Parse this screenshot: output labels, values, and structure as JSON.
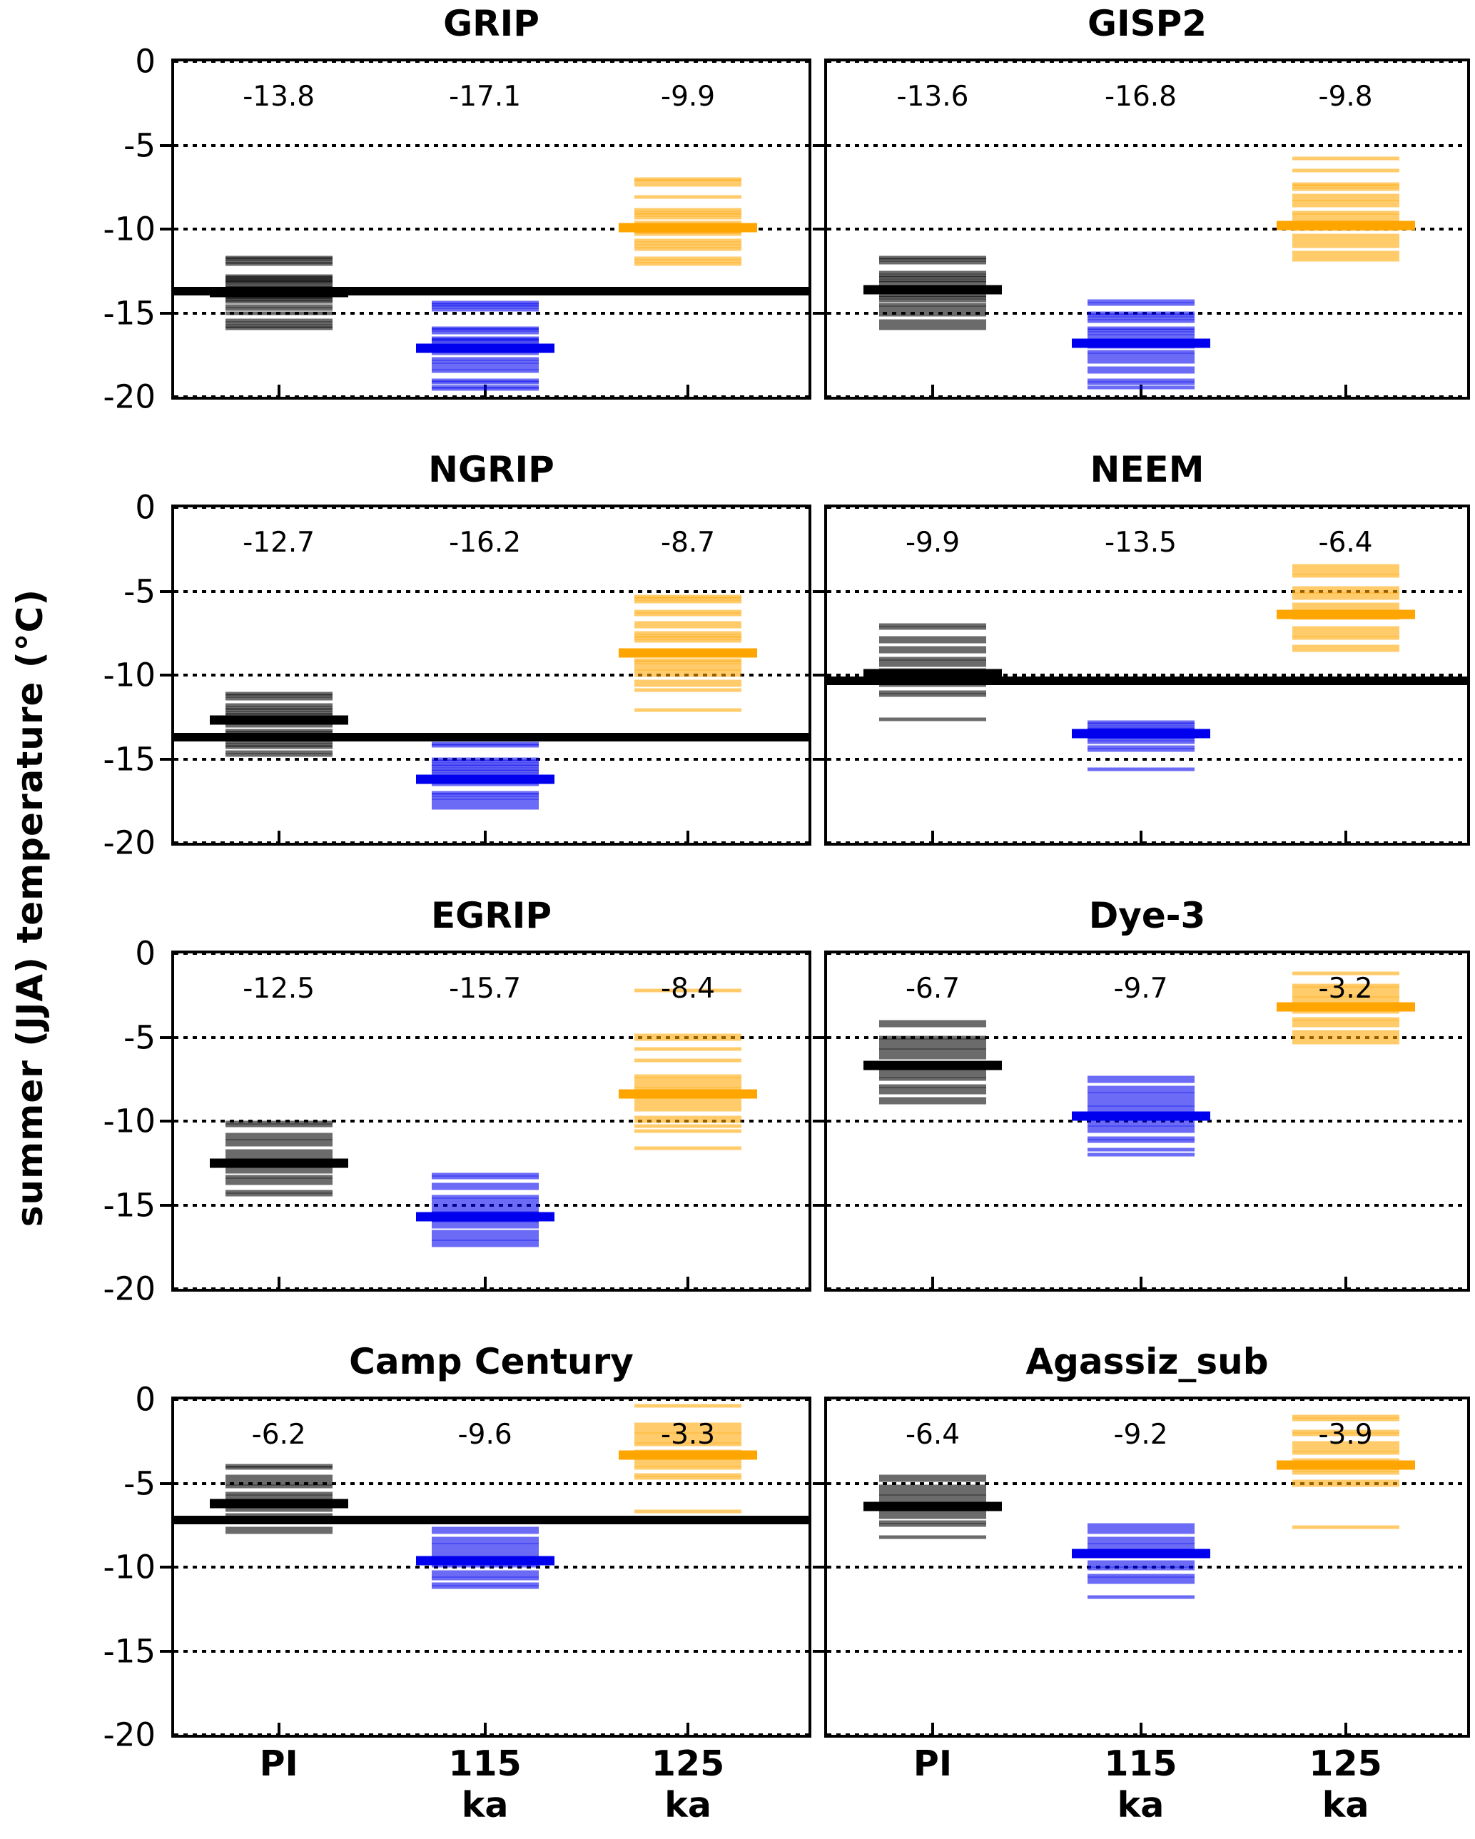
{
  "figure": {
    "ylabel": "summer (JJA) temperature (°C)",
    "ytick_labels": [
      "0",
      "-5",
      "-10",
      "-15",
      "-20"
    ],
    "ytick_values": [
      0,
      -5,
      -10,
      -15,
      -20
    ],
    "xtick_labels": [
      "PI",
      "115\nka",
      "125\nka"
    ],
    "group_x": [
      0.165,
      0.49,
      0.81
    ],
    "colors": {
      "pi": "#000000",
      "t115": "#0000ee",
      "t125": "#ffa500"
    }
  },
  "chart_data": [
    {
      "type": "strip",
      "title": "GRIP",
      "ylim": [
        -20,
        0
      ],
      "gridlines": [
        0,
        -5,
        -10,
        -15,
        -20
      ],
      "reference_line": -13.7,
      "groups": [
        {
          "category": "PI",
          "color_key": "pi",
          "mean": -13.8,
          "mean_label": "-13.8",
          "members": [
            -11.7,
            -11.8,
            -11.95,
            -12.1,
            -12.8,
            -12.9,
            -13.0,
            -13.1,
            -13.2,
            -13.35,
            -13.5,
            -13.9,
            -14.0,
            -14.1,
            -14.2,
            -14.35,
            -14.6,
            -14.75,
            -15.0,
            -15.45,
            -15.6,
            -15.8,
            -15.9
          ]
        },
        {
          "category": "115 ka",
          "color_key": "t115",
          "mean": -17.1,
          "mean_label": "-17.1",
          "members": [
            -14.4,
            -14.5,
            -14.65,
            -14.8,
            -15.9,
            -16.0,
            -16.15,
            -16.5,
            -16.6,
            -16.7,
            -16.85,
            -17.0,
            -17.1,
            -17.25,
            -17.4,
            -17.75,
            -17.9,
            -18.1,
            -18.3,
            -18.45,
            -19.0,
            -19.15,
            -19.4,
            -19.55
          ]
        },
        {
          "category": "125 ka",
          "color_key": "t125",
          "mean": -9.9,
          "mean_label": "-9.9",
          "members": [
            -7.0,
            -7.15,
            -7.35,
            -8.1,
            -8.85,
            -9.0,
            -9.15,
            -9.3,
            -9.6,
            -9.75,
            -9.9,
            -10.0,
            -10.15,
            -10.3,
            -10.7,
            -10.85,
            -11.0,
            -11.2,
            -11.75,
            -11.9,
            -12.1
          ]
        }
      ]
    },
    {
      "type": "strip",
      "title": "GISP2",
      "ylim": [
        -20,
        0
      ],
      "gridlines": [
        0,
        -5,
        -10,
        -15,
        -20
      ],
      "reference_line": null,
      "groups": [
        {
          "category": "PI",
          "color_key": "pi",
          "mean": -13.6,
          "mean_label": "-13.6",
          "members": [
            -11.7,
            -11.85,
            -12.0,
            -12.6,
            -12.75,
            -12.9,
            -13.05,
            -13.2,
            -13.4,
            -13.55,
            -13.8,
            -13.95,
            -14.1,
            -14.25,
            -14.5,
            -14.7,
            -14.9,
            -15.1,
            -15.5,
            -15.7,
            -15.9
          ]
        },
        {
          "category": "115 ka",
          "color_key": "t115",
          "mean": -16.8,
          "mean_label": "-16.8",
          "members": [
            -14.3,
            -14.45,
            -15.0,
            -15.15,
            -15.3,
            -15.5,
            -15.9,
            -16.05,
            -16.2,
            -16.4,
            -16.6,
            -16.8,
            -17.0,
            -17.3,
            -17.5,
            -17.7,
            -17.9,
            -18.3,
            -18.5,
            -19.0,
            -19.2,
            -19.45
          ]
        },
        {
          "category": "125 ka",
          "color_key": "t125",
          "mean": -9.8,
          "mean_label": "-9.8",
          "members": [
            -5.8,
            -6.5,
            -7.3,
            -7.45,
            -7.6,
            -8.0,
            -8.2,
            -8.4,
            -8.6,
            -9.0,
            -9.2,
            -9.4,
            -9.6,
            -9.8,
            -10.0,
            -10.4,
            -10.6,
            -10.8,
            -11.0,
            -11.4,
            -11.6,
            -11.85
          ]
        }
      ]
    },
    {
      "type": "strip",
      "title": "NGRIP",
      "ylim": [
        -20,
        0
      ],
      "gridlines": [
        0,
        -5,
        -10,
        -15,
        -20
      ],
      "reference_line": -13.7,
      "groups": [
        {
          "category": "PI",
          "color_key": "pi",
          "mean": -12.7,
          "mean_label": "-12.7",
          "members": [
            -11.1,
            -11.25,
            -11.4,
            -11.8,
            -11.95,
            -12.1,
            -12.25,
            -12.4,
            -12.55,
            -12.7,
            -12.85,
            -13.0,
            -13.3,
            -13.45,
            -13.6,
            -14.0,
            -14.15,
            -14.3,
            -14.6,
            -14.75
          ]
        },
        {
          "category": "115 ka",
          "color_key": "t115",
          "mean": -16.2,
          "mean_label": "-16.2",
          "members": [
            -14.1,
            -14.2,
            -15.0,
            -15.15,
            -15.3,
            -15.45,
            -15.6,
            -15.75,
            -15.9,
            -16.05,
            -16.2,
            -16.35,
            -16.5,
            -17.0,
            -17.15,
            -17.3,
            -17.5,
            -17.7,
            -17.9
          ]
        },
        {
          "category": "125 ka",
          "color_key": "t125",
          "mean": -8.7,
          "mean_label": "-8.7",
          "members": [
            -5.3,
            -5.45,
            -5.6,
            -6.2,
            -6.4,
            -6.9,
            -7.1,
            -7.5,
            -7.65,
            -7.8,
            -7.95,
            -9.1,
            -9.25,
            -9.4,
            -9.6,
            -9.8,
            -10.0,
            -10.4,
            -10.6,
            -10.9,
            -12.1
          ]
        }
      ]
    },
    {
      "type": "strip",
      "title": "NEEM",
      "ylim": [
        -20,
        0
      ],
      "gridlines": [
        0,
        -5,
        -10,
        -15,
        -20
      ],
      "reference_line": -10.35,
      "groups": [
        {
          "category": "PI",
          "color_key": "pi",
          "mean": -9.9,
          "mean_label": "-9.9",
          "members": [
            -7.0,
            -7.2,
            -7.8,
            -8.0,
            -8.4,
            -8.6,
            -9.0,
            -9.2,
            -9.4,
            -9.7,
            -9.85,
            -10.0,
            -10.15,
            -10.3,
            -10.45,
            -10.6,
            -11.0,
            -11.2,
            -12.65
          ]
        },
        {
          "category": "115 ka",
          "color_key": "t115",
          "mean": -13.5,
          "mean_label": "-13.5",
          "members": [
            -12.8,
            -12.95,
            -13.1,
            -13.25,
            -13.4,
            -13.55,
            -13.7,
            -13.85,
            -14.0,
            -14.3,
            -14.45,
            -15.6
          ]
        },
        {
          "category": "125 ka",
          "color_key": "t125",
          "mean": -6.4,
          "mean_label": "-6.4",
          "members": [
            -3.5,
            -3.7,
            -3.9,
            -4.1,
            -4.8,
            -5.0,
            -5.2,
            -5.4,
            -5.8,
            -6.0,
            -6.2,
            -6.4,
            -6.6,
            -7.2,
            -7.4,
            -7.6,
            -7.8,
            -8.3,
            -8.5,
            -10.4
          ]
        }
      ]
    },
    {
      "type": "strip",
      "title": "EGRIP",
      "ylim": [
        -20,
        0
      ],
      "gridlines": [
        0,
        -5,
        -10,
        -15,
        -20
      ],
      "reference_line": null,
      "groups": [
        {
          "category": "PI",
          "color_key": "pi",
          "mean": -12.5,
          "mean_label": "-12.5",
          "members": [
            -10.1,
            -10.25,
            -10.8,
            -11.0,
            -11.2,
            -11.4,
            -11.8,
            -12.0,
            -12.2,
            -12.4,
            -12.6,
            -12.8,
            -13.0,
            -13.3,
            -13.5,
            -13.7,
            -14.2,
            -14.4
          ]
        },
        {
          "category": "115 ka",
          "color_key": "t115",
          "mean": -15.7,
          "mean_label": "-15.7",
          "members": [
            -13.2,
            -13.35,
            -13.8,
            -14.0,
            -14.5,
            -14.7,
            -14.9,
            -15.1,
            -15.3,
            -15.5,
            -15.7,
            -15.9,
            -16.1,
            -16.3,
            -16.6,
            -16.8,
            -17.0,
            -17.2,
            -17.4
          ]
        },
        {
          "category": "125 ka",
          "color_key": "t125",
          "mean": -8.4,
          "mean_label": "-8.4",
          "members": [
            -2.2,
            -4.9,
            -5.1,
            -5.7,
            -6.4,
            -7.3,
            -7.5,
            -7.7,
            -7.9,
            -8.1,
            -8.3,
            -8.7,
            -8.9,
            -9.1,
            -9.3,
            -9.8,
            -10.0,
            -10.3,
            -10.6,
            -11.6
          ]
        }
      ]
    },
    {
      "type": "strip",
      "title": "Dye-3",
      "ylim": [
        -20,
        0
      ],
      "gridlines": [
        0,
        -5,
        -10,
        -15,
        -20
      ],
      "reference_line": null,
      "groups": [
        {
          "category": "PI",
          "color_key": "pi",
          "mean": -6.7,
          "mean_label": "-6.7",
          "members": [
            -4.1,
            -4.3,
            -5.0,
            -5.2,
            -5.4,
            -5.6,
            -5.8,
            -6.0,
            -6.2,
            -6.5,
            -6.7,
            -6.9,
            -7.1,
            -7.3,
            -7.5,
            -7.9,
            -8.1,
            -8.3,
            -8.7,
            -8.9
          ]
        },
        {
          "category": "115 ka",
          "color_key": "t115",
          "mean": -9.7,
          "mean_label": "-9.7",
          "members": [
            -7.4,
            -7.6,
            -8.0,
            -8.2,
            -8.4,
            -8.6,
            -8.8,
            -9.0,
            -9.2,
            -9.4,
            -9.6,
            -10.0,
            -10.2,
            -10.4,
            -10.6,
            -11.0,
            -11.2,
            -11.7,
            -12.0
          ]
        },
        {
          "category": "125 ka",
          "color_key": "t125",
          "mean": -3.2,
          "mean_label": "-3.2",
          "members": [
            -1.2,
            -1.9,
            -2.1,
            -2.3,
            -2.5,
            -2.7,
            -2.9,
            -3.1,
            -3.3,
            -3.5,
            -3.9,
            -4.1,
            -4.3,
            -4.7,
            -4.9,
            -5.1,
            -5.3
          ]
        }
      ]
    },
    {
      "type": "strip",
      "title": "Camp Century",
      "ylim": [
        -20,
        0
      ],
      "gridlines": [
        0,
        -5,
        -10,
        -15,
        -20
      ],
      "reference_line": -7.2,
      "groups": [
        {
          "category": "PI",
          "color_key": "pi",
          "mean": -6.2,
          "mean_label": "-6.2",
          "members": [
            -3.95,
            -4.1,
            -4.6,
            -4.8,
            -5.0,
            -5.2,
            -5.6,
            -5.8,
            -6.0,
            -6.2,
            -6.4,
            -6.6,
            -6.9,
            -7.1,
            -7.3,
            -7.7,
            -7.9
          ]
        },
        {
          "category": "115 ka",
          "color_key": "t115",
          "mean": -9.6,
          "mean_label": "-9.6",
          "members": [
            -7.7,
            -7.9,
            -8.3,
            -8.5,
            -8.7,
            -8.9,
            -9.1,
            -9.3,
            -9.5,
            -9.7,
            -9.9,
            -10.3,
            -10.5,
            -10.7,
            -11.0,
            -11.2
          ]
        },
        {
          "category": "125 ka",
          "color_key": "t125",
          "mean": -3.3,
          "mean_label": "-3.3",
          "members": [
            -0.4,
            -1.5,
            -1.7,
            -1.9,
            -2.1,
            -2.3,
            -2.5,
            -2.7,
            -3.1,
            -3.3,
            -3.5,
            -3.7,
            -3.9,
            -4.1,
            -4.5,
            -4.7,
            -6.7
          ]
        }
      ]
    },
    {
      "type": "strip",
      "title": "Agassiz_sub",
      "ylim": [
        -20,
        0
      ],
      "gridlines": [
        0,
        -5,
        -10,
        -15,
        -20
      ],
      "reference_line": null,
      "groups": [
        {
          "category": "PI",
          "color_key": "pi",
          "mean": -6.4,
          "mean_label": "-6.4",
          "members": [
            -4.6,
            -4.8,
            -5.2,
            -5.4,
            -5.6,
            -5.8,
            -6.0,
            -6.2,
            -6.4,
            -6.6,
            -6.8,
            -7.0,
            -7.3,
            -7.5,
            -8.2
          ]
        },
        {
          "category": "115 ka",
          "color_key": "t115",
          "mean": -9.2,
          "mean_label": "-9.2",
          "members": [
            -7.5,
            -7.7,
            -7.9,
            -8.3,
            -8.5,
            -8.7,
            -8.9,
            -9.1,
            -9.3,
            -9.7,
            -9.9,
            -10.1,
            -10.5,
            -10.7,
            -10.9,
            -11.8
          ]
        },
        {
          "category": "125 ka",
          "color_key": "t125",
          "mean": -3.9,
          "mean_label": "-3.9",
          "members": [
            -1.0,
            -1.2,
            -1.9,
            -2.1,
            -2.6,
            -2.8,
            -3.0,
            -3.2,
            -3.6,
            -3.8,
            -4.0,
            -4.2,
            -4.4,
            -4.9,
            -5.1,
            -7.6
          ]
        }
      ]
    }
  ]
}
